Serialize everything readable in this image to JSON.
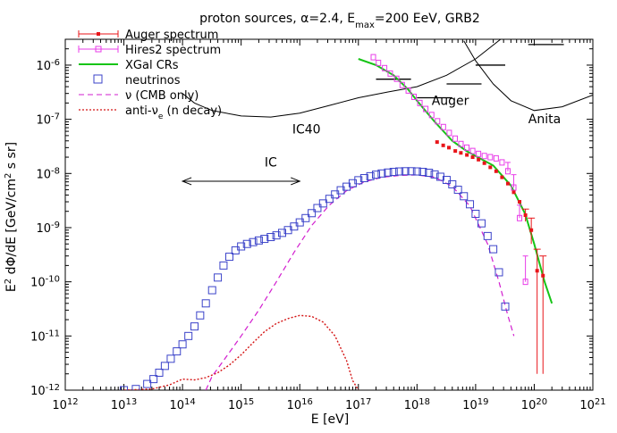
{
  "chart_data": {
    "type": "scatter",
    "title": "proton sources, α=2.4, E",
    "title_sub": "max",
    "title_tail": "=200 EeV, GRB2",
    "xlabel": "E [eV]",
    "ylabel_main": "E",
    "ylabel_sup": "2",
    "ylabel_mid": " dΦ/dE [GeV/cm",
    "ylabel_sup2": "2",
    "ylabel_tail": " s sr]",
    "xscale": "log",
    "yscale": "log",
    "xlim": [
      1000000000000.0,
      1e+21
    ],
    "ylim": [
      1e-12,
      3e-06
    ],
    "x_tick_labels": [
      {
        "base": "10",
        "exp": "12",
        "value": 1000000000000.0
      },
      {
        "base": "10",
        "exp": "13",
        "value": 10000000000000.0
      },
      {
        "base": "10",
        "exp": "14",
        "value": 100000000000000.0
      },
      {
        "base": "10",
        "exp": "15",
        "value": 1000000000000000.0
      },
      {
        "base": "10",
        "exp": "16",
        "value": 1e+16
      },
      {
        "base": "10",
        "exp": "17",
        "value": 1e+17
      },
      {
        "base": "10",
        "exp": "18",
        "value": 1e+18
      },
      {
        "base": "10",
        "exp": "19",
        "value": 1e+19
      },
      {
        "base": "10",
        "exp": "20",
        "value": 1e+20
      },
      {
        "base": "10",
        "exp": "21",
        "value": 1e+21
      }
    ],
    "y_tick_labels": [
      {
        "base": "10",
        "exp": "-12",
        "value": 1e-12
      },
      {
        "base": "10",
        "exp": "-11",
        "value": 1e-11
      },
      {
        "base": "10",
        "exp": "-10",
        "value": 1e-10
      },
      {
        "base": "10",
        "exp": "-9",
        "value": 1e-09
      },
      {
        "base": "10",
        "exp": "-8",
        "value": 1e-08
      },
      {
        "base": "10",
        "exp": "-7",
        "value": 1e-07
      },
      {
        "base": "10",
        "exp": "-6",
        "value": 1e-06
      }
    ],
    "legend": {
      "placement": "top-left",
      "entries": [
        {
          "label": "Auger spectrum",
          "color": "#e8151a",
          "style": "errorbar-point"
        },
        {
          "label": "Hires2 spectrum",
          "color": "#e83ce8",
          "style": "errorbar-open-square"
        },
        {
          "label": "XGal CRs",
          "color": "#17c417",
          "style": "solid"
        },
        {
          "label": "neutrinos",
          "color": "#3b43c9",
          "style": "open-square"
        },
        {
          "label": "ν (CMB only)",
          "color": "#d21ecf",
          "style": "dashed"
        },
        {
          "label": "anti-ν",
          "label_sub": "e",
          "label_tail": " (n decay)",
          "color": "#d41414",
          "style": "dotted"
        }
      ]
    },
    "annotations": [
      {
        "text": "IC",
        "x": 3200000000000000.0,
        "y": 1.35e-08
      },
      {
        "text": "IC40",
        "x": 1.3e+16,
        "y": 5.5e-08
      },
      {
        "text": "Auger",
        "x": 3.7e+18,
        "y": 1.85e-07
      },
      {
        "text": "Anita",
        "x": 1.5e+20,
        "y": 8.5e-08
      }
    ],
    "ic_arrow": {
      "x_from": 100000000000000.0,
      "x_to": 1e+16,
      "y": 7.2e-09
    },
    "series": [
      {
        "name": "Auger spectrum",
        "color": "#e8151a",
        "points": [
          [
            2.2e+18,
            3.8e-08
          ],
          [
            2.8e+18,
            3.3e-08
          ],
          [
            3.5e+18,
            3e-08
          ],
          [
            4.5e+18,
            2.6e-08
          ],
          [
            5.6e+18,
            2.4e-08
          ],
          [
            7.1e+18,
            2.2e-08
          ],
          [
            8.9e+18,
            2e-08
          ],
          [
            1.12e+19,
            1.8e-08
          ],
          [
            1.41e+19,
            1.55e-08
          ],
          [
            1.78e+19,
            1.3e-08
          ],
          [
            2.24e+19,
            1.1e-08
          ],
          [
            2.82e+19,
            8.5e-09
          ],
          [
            3.55e+19,
            6.5e-09
          ],
          [
            4.47e+19,
            4.5e-09
          ],
          [
            5.62e+19,
            3e-09
          ],
          [
            7.08e+19,
            1.7e-09
          ],
          [
            8.91e+19,
            9e-10
          ],
          [
            1.12e+20,
            1.6e-10
          ],
          [
            1.41e+20,
            1.3e-10
          ]
        ],
        "errors_low": [
          [
            1.12e+20,
            2e-12
          ],
          [
            1.41e+20,
            2e-12
          ],
          [
            8.91e+19,
            5e-10
          ],
          [
            7.08e+19,
            1.3e-09
          ]
        ],
        "errors_high": [
          [
            1.12e+20,
            4e-10
          ],
          [
            1.41e+20,
            3e-10
          ],
          [
            8.91e+19,
            1.5e-09
          ],
          [
            7.08e+19,
            2.2e-09
          ]
        ]
      },
      {
        "name": "Hires2 spectrum",
        "color": "#e83ce8",
        "points": [
          [
            1.8e+17,
            1.4e-06
          ],
          [
            2.2e+17,
            1.1e-06
          ],
          [
            2.8e+17,
            8.8e-07
          ],
          [
            3.5e+17,
            7e-07
          ],
          [
            4.5e+17,
            5.6e-07
          ],
          [
            5.6e+17,
            4.3e-07
          ],
          [
            7.1e+17,
            3.4e-07
          ],
          [
            8.9e+17,
            2.6e-07
          ],
          [
            1.12e+18,
            2e-07
          ],
          [
            1.41e+18,
            1.55e-07
          ],
          [
            1.78e+18,
            1.2e-07
          ],
          [
            2.24e+18,
            9.2e-08
          ],
          [
            2.82e+18,
            7.2e-08
          ],
          [
            3.55e+18,
            5.6e-08
          ],
          [
            4.47e+18,
            4.4e-08
          ],
          [
            5.62e+18,
            3.5e-08
          ],
          [
            7.08e+18,
            3e-08
          ],
          [
            8.91e+18,
            2.6e-08
          ],
          [
            1.12e+19,
            2.3e-08
          ],
          [
            1.41e+19,
            2.1e-08
          ],
          [
            1.78e+19,
            2e-08
          ],
          [
            2.24e+19,
            1.9e-08
          ],
          [
            2.82e+19,
            1.6e-08
          ],
          [
            3.55e+19,
            1.1e-08
          ],
          [
            4.47e+19,
            5.5e-09
          ],
          [
            5.62e+19,
            1.5e-09
          ],
          [
            7.08e+19,
            1e-10
          ]
        ],
        "errors_high": [
          [
            3.55e+19,
            1.6e-08
          ],
          [
            4.47e+19,
            9.5e-09
          ],
          [
            5.62e+19,
            2.6e-09
          ],
          [
            7.08e+19,
            3e-10
          ]
        ]
      },
      {
        "name": "XGal CRs",
        "color": "#17c417",
        "points": [
          [
            1e+17,
            1.3e-06
          ],
          [
            2e+17,
            1e-06
          ],
          [
            4e+17,
            6.5e-07
          ],
          [
            7e+17,
            3.6e-07
          ],
          [
            1e+18,
            2.2e-07
          ],
          [
            2e+18,
            9e-08
          ],
          [
            4e+18,
            4e-08
          ],
          [
            7e+18,
            2.6e-08
          ],
          [
            1e+19,
            2.1e-08
          ],
          [
            2e+19,
            1.4e-08
          ],
          [
            4e+19,
            6e-09
          ],
          [
            7e+19,
            1.8e-09
          ],
          [
            1e+20,
            5e-10
          ],
          [
            1.5e+20,
            1e-10
          ],
          [
            2e+20,
            4e-11
          ]
        ]
      },
      {
        "name": "neutrinos",
        "color": "#3b43c9",
        "points": [
          [
            10000000000000.0,
            1e-12
          ],
          [
            16000000000000.0,
            1.05e-12
          ],
          [
            25000000000000.0,
            1.3e-12
          ],
          [
            32000000000000.0,
            1.6e-12
          ],
          [
            40000000000000.0,
            2.1e-12
          ],
          [
            50000000000000.0,
            2.8e-12
          ],
          [
            63000000000000.0,
            3.8e-12
          ],
          [
            80000000000000.0,
            5.2e-12
          ],
          [
            100000000000000.0,
            7e-12
          ],
          [
            126000000000000.0,
            1e-11
          ],
          [
            160000000000000.0,
            1.5e-11
          ],
          [
            200000000000000.0,
            2.4e-11
          ],
          [
            250000000000000.0,
            4e-11
          ],
          [
            320000000000000.0,
            7e-11
          ],
          [
            400000000000000.0,
            1.2e-10
          ],
          [
            500000000000000.0,
            2e-10
          ],
          [
            630000000000000.0,
            2.9e-10
          ],
          [
            800000000000000.0,
            3.8e-10
          ],
          [
            1000000000000000.0,
            4.5e-10
          ],
          [
            1260000000000000.0,
            5e-10
          ],
          [
            1600000000000000.0,
            5.4e-10
          ],
          [
            2000000000000000.0,
            5.8e-10
          ],
          [
            2500000000000000.0,
            6.2e-10
          ],
          [
            3200000000000000.0,
            6.7e-10
          ],
          [
            4000000000000000.0,
            7.2e-10
          ],
          [
            5000000000000000.0,
            8e-10
          ],
          [
            6300000000000000.0,
            9e-10
          ],
          [
            8000000000000000.0,
            1.05e-09
          ],
          [
            1e+16,
            1.25e-09
          ],
          [
            1.26e+16,
            1.5e-09
          ],
          [
            1.6e+16,
            1.85e-09
          ],
          [
            2e+16,
            2.3e-09
          ],
          [
            2.5e+16,
            2.8e-09
          ],
          [
            3.2e+16,
            3.4e-09
          ],
          [
            4e+16,
            4.1e-09
          ],
          [
            5e+16,
            4.9e-09
          ],
          [
            6.3e+16,
            5.7e-09
          ],
          [
            8e+16,
            6.6e-09
          ],
          [
            1e+17,
            7.5e-09
          ],
          [
            1.26e+17,
            8.2e-09
          ],
          [
            1.6e+17,
            8.9e-09
          ],
          [
            2e+17,
            9.5e-09
          ],
          [
            2.5e+17,
            1e-08
          ],
          [
            3.2e+17,
            1.04e-08
          ],
          [
            4e+17,
            1.07e-08
          ],
          [
            5e+17,
            1.09e-08
          ],
          [
            6.3e+17,
            1.1e-08
          ],
          [
            8e+17,
            1.1e-08
          ],
          [
            1e+18,
            1.09e-08
          ],
          [
            1.26e+18,
            1.07e-08
          ],
          [
            1.6e+18,
            1.03e-08
          ],
          [
            2e+18,
            9.6e-09
          ],
          [
            2.5e+18,
            8.7e-09
          ],
          [
            3.2e+18,
            7.6e-09
          ],
          [
            4e+18,
            6.3e-09
          ],
          [
            5e+18,
            5e-09
          ],
          [
            6.3e+18,
            3.8e-09
          ],
          [
            8e+18,
            2.7e-09
          ],
          [
            1e+19,
            1.8e-09
          ],
          [
            1.26e+19,
            1.2e-09
          ],
          [
            1.6e+19,
            7e-10
          ],
          [
            2e+19,
            4e-10
          ],
          [
            2.5e+19,
            1.5e-10
          ],
          [
            3.2e+19,
            3.5e-11
          ]
        ]
      },
      {
        "name": "ν (CMB only)",
        "color": "#d21ecf",
        "points": [
          [
            250000000000000.0,
            1e-12
          ],
          [
            320000000000000.0,
            1.8e-12
          ],
          [
            500000000000000.0,
            3.5e-12
          ],
          [
            1000000000000000.0,
            1e-11
          ],
          [
            2000000000000000.0,
            3e-11
          ],
          [
            4000000000000000.0,
            1e-10
          ],
          [
            8000000000000000.0,
            3.5e-10
          ],
          [
            1.6e+16,
            1.1e-09
          ],
          [
            3.2e+16,
            2.6e-09
          ],
          [
            6.3e+16,
            4.8e-09
          ],
          [
            1.26e+17,
            7e-09
          ],
          [
            2.5e+17,
            8.5e-09
          ],
          [
            5e+17,
            9.2e-09
          ],
          [
            1e+18,
            9.4e-09
          ],
          [
            2e+18,
            8.5e-09
          ],
          [
            4e+18,
            5.8e-09
          ],
          [
            8e+18,
            2.5e-09
          ],
          [
            1.6e+19,
            5e-10
          ],
          [
            2.5e+19,
            1e-10
          ],
          [
            3.5e+19,
            2.5e-11
          ],
          [
            4.5e+19,
            1e-11
          ]
        ]
      },
      {
        "name": "anti-νe (n decay)",
        "color": "#d41414",
        "points": [
          [
            10000000000000.0,
            1e-12
          ],
          [
            30000000000000.0,
            1.05e-12
          ],
          [
            60000000000000.0,
            1.25e-12
          ],
          [
            100000000000000.0,
            1.6e-12
          ],
          [
            160000000000000.0,
            1.55e-12
          ],
          [
            250000000000000.0,
            1.7e-12
          ],
          [
            400000000000000.0,
            2.1e-12
          ],
          [
            630000000000000.0,
            2.9e-12
          ],
          [
            1000000000000000.0,
            4.5e-12
          ],
          [
            1600000000000000.0,
            7.5e-12
          ],
          [
            2500000000000000.0,
            1.2e-11
          ],
          [
            4000000000000000.0,
            1.7e-11
          ],
          [
            6300000000000000.0,
            2.1e-11
          ],
          [
            1e+16,
            2.4e-11
          ],
          [
            1.6e+16,
            2.3e-11
          ],
          [
            2.5e+16,
            1.8e-11
          ],
          [
            4e+16,
            1e-11
          ],
          [
            6.3e+16,
            3.5e-12
          ],
          [
            8e+16,
            1.5e-12
          ],
          [
            1e+17,
            1e-12
          ]
        ]
      },
      {
        "name": "IC40 limit",
        "color": "#000000",
        "points": [
          [
            100000000000000.0,
            3e-07
          ],
          [
            160000000000000.0,
            2e-07
          ],
          [
            320000000000000.0,
            1.45e-07
          ],
          [
            1000000000000000.0,
            1.15e-07
          ],
          [
            3200000000000000.0,
            1.1e-07
          ],
          [
            1e+16,
            1.3e-07
          ],
          [
            3.2e+16,
            1.8e-07
          ],
          [
            1e+17,
            2.5e-07
          ],
          [
            3.2e+17,
            3.2e-07
          ],
          [
            1e+18,
            4e-07
          ],
          [
            3.2e+18,
            6.5e-07
          ],
          [
            1e+19,
            1.3e-06
          ],
          [
            3.2e+19,
            3.5e-06
          ]
        ]
      },
      {
        "name": "Anita limit",
        "color": "#000000",
        "points": [
          [
            6.3e+18,
            2.8e-06
          ],
          [
            1e+19,
            1.2e-06
          ],
          [
            2e+19,
            4.5e-07
          ],
          [
            4e+19,
            2.2e-07
          ],
          [
            1e+20,
            1.45e-07
          ],
          [
            3e+20,
            1.7e-07
          ],
          [
            1e+21,
            2.8e-07
          ]
        ]
      },
      {
        "name": "Auger limit bars",
        "color": "#000000",
        "segments": [
          [
            [
              2e+17,
              5.5e-07
            ],
            [
              7.9e+17,
              5.5e-07
            ]
          ],
          [
            [
              1e+18,
              2.5e-07
            ],
            [
              4e+18,
              2.5e-07
            ]
          ],
          [
            [
              3.2e+18,
              4.5e-07
            ],
            [
              1.26e+19,
              4.5e-07
            ]
          ],
          [
            [
              1e+19,
              1e-06
            ],
            [
              3.2e+19,
              1e-06
            ]
          ],
          [
            [
              7.9e+19,
              2.4e-06
            ],
            [
              3.2e+20,
              2.4e-06
            ]
          ]
        ]
      }
    ]
  }
}
